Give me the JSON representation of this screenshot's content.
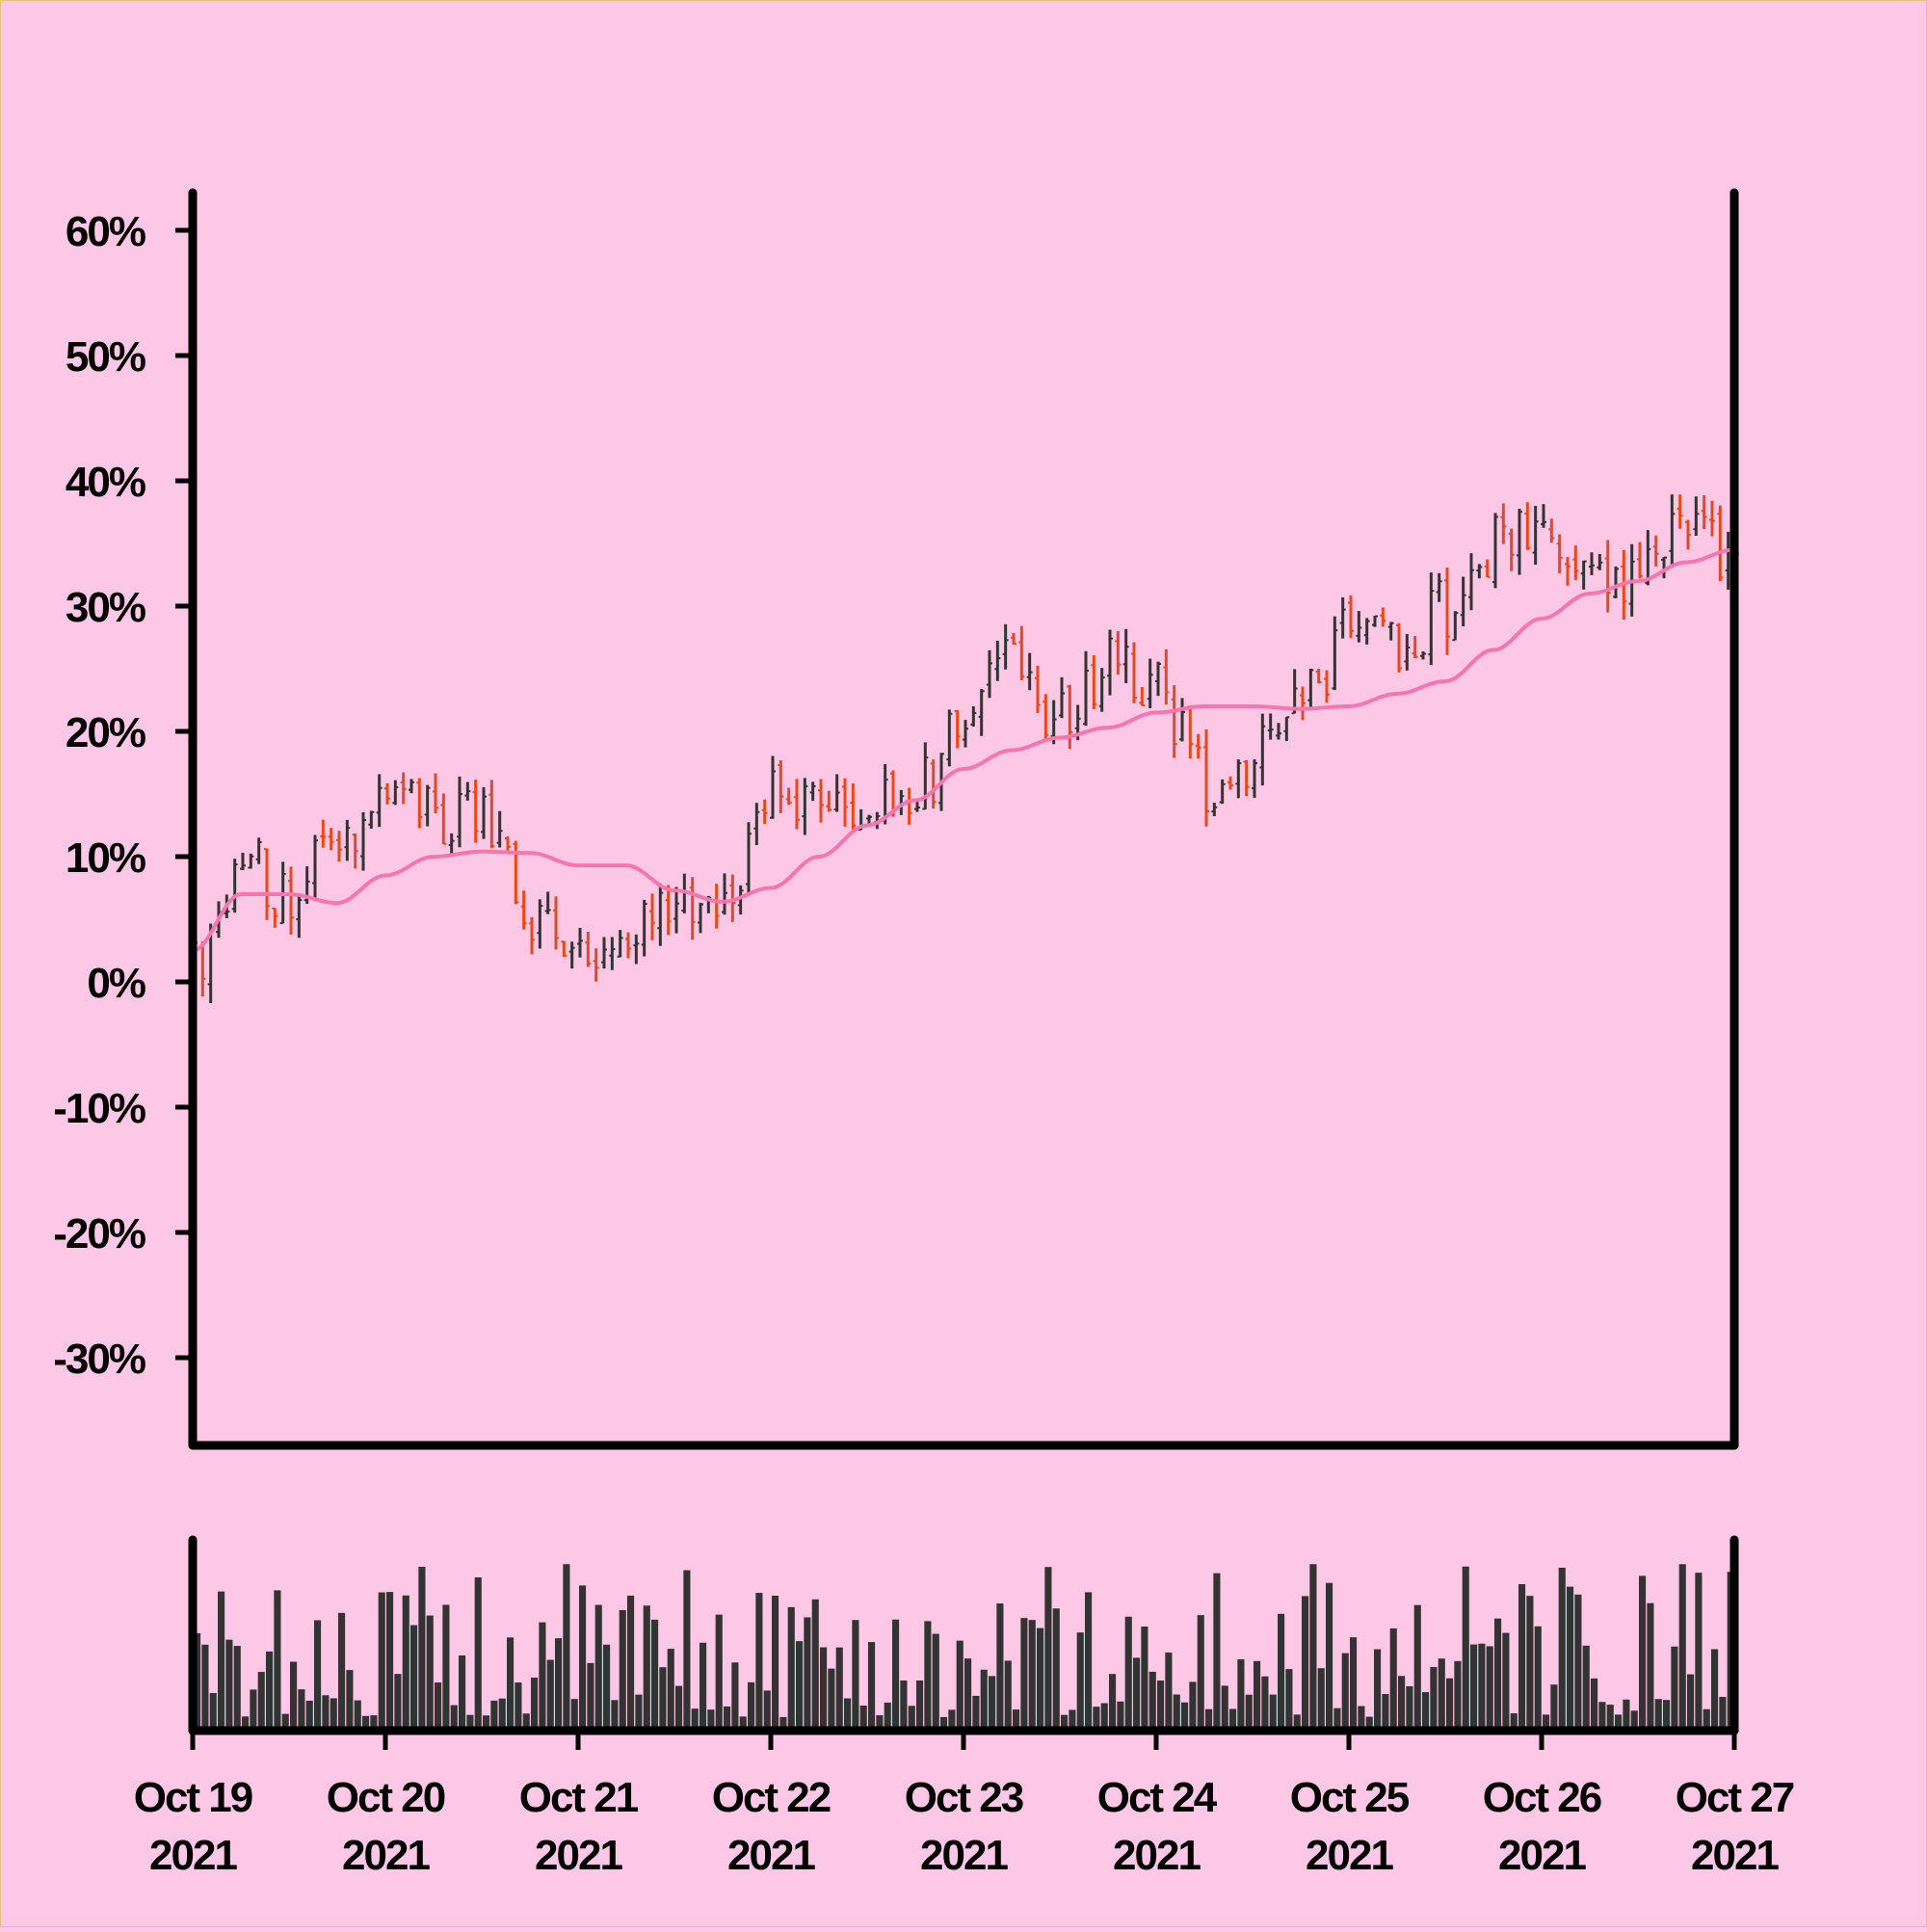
{
  "colors": {
    "background": "#fdc8e6",
    "up_bar": "#333333",
    "down_bar": "#e8481e",
    "moving_average": "#f776ad",
    "volume": "#333333",
    "axis": "#000000"
  },
  "chart_data": {
    "type": "ohlc",
    "title": "",
    "xlabel": "",
    "ylabel": "",
    "ylim": [
      -37,
      63
    ],
    "yticks": [
      "60%",
      "50%",
      "40%",
      "30%",
      "20%",
      "10%",
      "0%",
      "-10%",
      "-20%",
      "-30%"
    ],
    "ytick_values": [
      60,
      50,
      40,
      30,
      20,
      10,
      0,
      -10,
      -20,
      -30
    ],
    "xtick_dates": [
      "Oct 19",
      "Oct 20",
      "Oct 21",
      "Oct 22",
      "Oct 23",
      "Oct 24",
      "Oct 25",
      "Oct 26",
      "Oct 27"
    ],
    "xtick_years": [
      "2021",
      "2021",
      "2021",
      "2021",
      "2021",
      "2021",
      "2021",
      "2021",
      "2021"
    ],
    "x_range": [
      "2021-10-19",
      "2021-10-27"
    ],
    "grid": false,
    "legend": "none",
    "bars_per_day": 24,
    "close_path": [
      [
        "2021-10-19",
        2
      ],
      [
        "2021-10-19 06:00",
        10
      ],
      [
        "2021-10-19 12:00",
        6
      ],
      [
        "2021-10-19 18:00",
        12
      ],
      [
        "2021-10-20",
        15
      ],
      [
        "2021-10-20 06:00",
        13
      ],
      [
        "2021-10-20 12:00",
        13
      ],
      [
        "2021-10-20 18:00",
        5
      ],
      [
        "2021-10-21",
        3
      ],
      [
        "2021-10-21 06:00",
        4
      ],
      [
        "2021-10-21 12:00",
        5
      ],
      [
        "2021-10-21 18:00",
        7
      ],
      [
        "2021-10-22",
        16
      ],
      [
        "2021-10-22 06:00",
        14
      ],
      [
        "2021-10-22 12:00",
        14
      ],
      [
        "2021-10-22 18:00",
        15
      ],
      [
        "2021-10-23",
        22
      ],
      [
        "2021-10-23 06:00",
        25
      ],
      [
        "2021-10-23 12:00",
        21
      ],
      [
        "2021-10-23 18:00",
        25
      ],
      [
        "2021-10-24",
        23
      ],
      [
        "2021-10-24 06:00",
        16
      ],
      [
        "2021-10-24 12:00",
        18
      ],
      [
        "2021-10-24 18:00",
        22
      ],
      [
        "2021-10-25",
        28
      ],
      [
        "2021-10-25 06:00",
        27
      ],
      [
        "2021-10-25 12:00",
        30
      ],
      [
        "2021-10-25 18:00",
        35
      ],
      [
        "2021-10-26",
        36
      ],
      [
        "2021-10-26 06:00",
        31
      ],
      [
        "2021-10-26 12:00",
        32
      ],
      [
        "2021-10-26 18:00",
        37
      ],
      [
        "2021-10-27",
        34
      ]
    ],
    "moving_average": [
      [
        "2021-10-19",
        2.5
      ],
      [
        "2021-10-19 06:00",
        7
      ],
      [
        "2021-10-19 12:00",
        7
      ],
      [
        "2021-10-19 18:00",
        6.3
      ],
      [
        "2021-10-20",
        8.5
      ],
      [
        "2021-10-20 06:00",
        10
      ],
      [
        "2021-10-20 12:00",
        10.4
      ],
      [
        "2021-10-20 18:00",
        10.3
      ],
      [
        "2021-10-21",
        9.3
      ],
      [
        "2021-10-21 06:00",
        9.3
      ],
      [
        "2021-10-21 12:00",
        7.3
      ],
      [
        "2021-10-21 18:00",
        6.4
      ],
      [
        "2021-10-22",
        7.5
      ],
      [
        "2021-10-22 06:00",
        10
      ],
      [
        "2021-10-22 12:00",
        12.5
      ],
      [
        "2021-10-22 18:00",
        14.5
      ],
      [
        "2021-10-23",
        17
      ],
      [
        "2021-10-23 06:00",
        18.5
      ],
      [
        "2021-10-23 12:00",
        19.5
      ],
      [
        "2021-10-23 18:00",
        20.3
      ],
      [
        "2021-10-24",
        21.5
      ],
      [
        "2021-10-24 06:00",
        22
      ],
      [
        "2021-10-24 12:00",
        22
      ],
      [
        "2021-10-24 18:00",
        21.8
      ],
      [
        "2021-10-25",
        22
      ],
      [
        "2021-10-25 06:00",
        23
      ],
      [
        "2021-10-25 12:00",
        24
      ],
      [
        "2021-10-25 18:00",
        26.5
      ],
      [
        "2021-10-26",
        29
      ],
      [
        "2021-10-26 06:00",
        31
      ],
      [
        "2021-10-26 12:00",
        32
      ],
      [
        "2021-10-26 18:00",
        33.5
      ],
      [
        "2021-10-27",
        34.5
      ]
    ]
  }
}
